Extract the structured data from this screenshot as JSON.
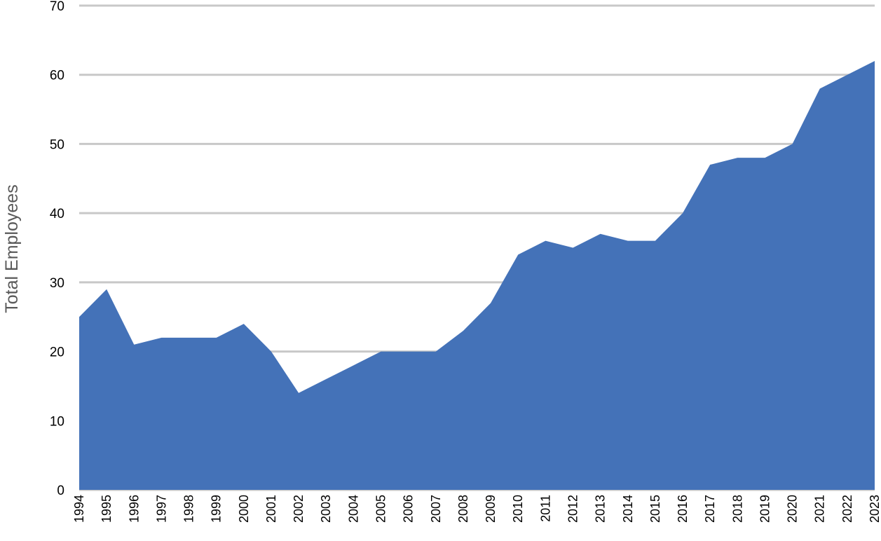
{
  "chart_data": {
    "type": "area",
    "title": "",
    "xlabel": "",
    "ylabel": "Total Employees",
    "ylim": [
      0,
      70
    ],
    "yticks": [
      0,
      10,
      20,
      30,
      40,
      50,
      60,
      70
    ],
    "grid": true,
    "legend": "none",
    "color": "#4472b8",
    "grid_color": "#c8c8c8",
    "x": [
      "1994",
      "1995",
      "1996",
      "1997",
      "1998",
      "1999",
      "2000",
      "2001",
      "2002",
      "2003",
      "2004",
      "2005",
      "2006",
      "2007",
      "2008",
      "2009",
      "2010",
      "2011",
      "2012",
      "2013",
      "2014",
      "2015",
      "2016",
      "2017",
      "2018",
      "2019",
      "2020",
      "2021",
      "2022",
      "2023"
    ],
    "values": [
      25,
      29,
      21,
      22,
      22,
      22,
      24,
      20,
      14,
      16,
      18,
      20,
      20,
      20,
      23,
      27,
      34,
      36,
      35,
      37,
      36,
      36,
      40,
      47,
      48,
      48,
      50,
      58,
      60,
      62
    ]
  }
}
